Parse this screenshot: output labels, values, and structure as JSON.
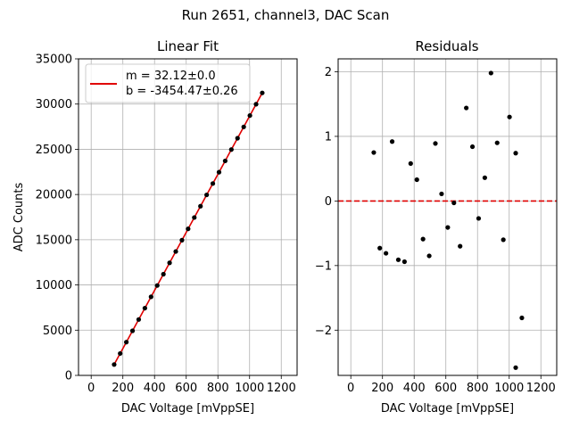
{
  "suptitle": "Run 2651, channel3, DAC Scan",
  "chart_data": [
    {
      "type": "scatter",
      "title": "Linear Fit",
      "xlabel": "DAC Voltage [mVppSE]",
      "ylabel": "ADC Counts",
      "xlim": [
        -80,
        1300
      ],
      "ylim": [
        0,
        35000
      ],
      "xticks": [
        0,
        200,
        400,
        600,
        800,
        1000,
        1200
      ],
      "yticks": [
        0,
        5000,
        10000,
        15000,
        20000,
        25000,
        30000,
        35000
      ],
      "grid": true,
      "legend": {
        "placement": "top-left",
        "label_line1": "m = 32.12±0.0",
        "label_line2": "b = -3454.47±0.26",
        "line_color": "#e00000"
      },
      "fit": {
        "slope": 32.12,
        "intercept": -3454.47,
        "x_range": [
          145,
          1085
        ]
      },
      "x": [
        145,
        183,
        222,
        261,
        300,
        339,
        378,
        417,
        456,
        495,
        534,
        573,
        612,
        651,
        690,
        729,
        768,
        807,
        846,
        885,
        924,
        963,
        1002,
        1041,
        1080
      ],
      "point_color": "#000000"
    },
    {
      "type": "scatter",
      "title": "Residuals",
      "xlabel": "DAC Voltage [mVppSE]",
      "ylabel": "",
      "xlim": [
        -80,
        1300
      ],
      "ylim": [
        -2.7,
        2.2
      ],
      "xticks": [
        0,
        200,
        400,
        600,
        800,
        1000,
        1200
      ],
      "yticks": [
        -2,
        -1,
        0,
        1,
        2
      ],
      "grid": true,
      "zero_line_color": "#e00000",
      "x": [
        145,
        183,
        222,
        261,
        300,
        339,
        378,
        417,
        456,
        495,
        534,
        573,
        612,
        651,
        690,
        729,
        768,
        807,
        846,
        885,
        924,
        963,
        1002,
        1041,
        1080,
        1041
      ],
      "y": [
        0.75,
        -0.73,
        -0.81,
        0.92,
        -0.91,
        -0.94,
        0.58,
        0.33,
        -0.59,
        -0.85,
        0.89,
        0.11,
        -0.41,
        -0.03,
        -0.7,
        1.44,
        0.84,
        -0.27,
        0.36,
        1.98,
        0.9,
        -0.6,
        1.3,
        0.74,
        -1.81,
        -2.58
      ],
      "point_color": "#000000"
    }
  ]
}
